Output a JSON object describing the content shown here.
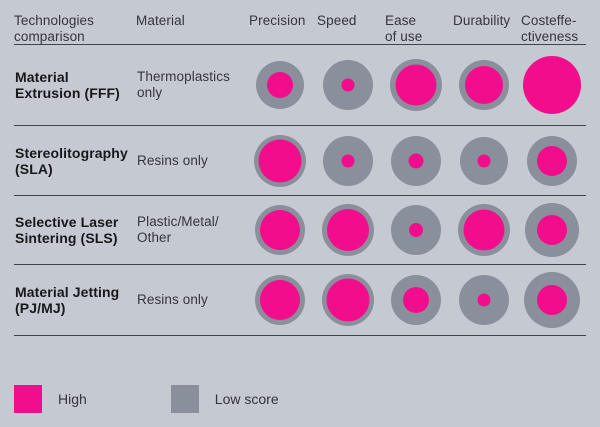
{
  "palette": {
    "bg": "#C5C9D1",
    "pink": "#F20D8C",
    "gray": "#8A909B",
    "line": "#40444D",
    "text": "#33363B",
    "text_bold": "#17181C"
  },
  "header": {
    "technologies_label": "Technologies\ncomparison",
    "material_label": "Material",
    "score_columns": [
      {
        "label": "Precision"
      },
      {
        "label": "Speed"
      },
      {
        "label": "Ease\nof use"
      },
      {
        "label": "Durability"
      },
      {
        "label": "Costeffe-\nctiveness"
      }
    ]
  },
  "rows": [
    {
      "technology": "Material\nExtrusion (FFF)",
      "material": "Thermoplastics\nonly",
      "scores": [
        {
          "criterion": "Precision",
          "gray": 48,
          "pink": 26
        },
        {
          "criterion": "Speed",
          "gray": 50,
          "pink": 13
        },
        {
          "criterion": "Ease of use",
          "gray": 52,
          "pink": 41
        },
        {
          "criterion": "Durability",
          "gray": 50,
          "pink": 38
        },
        {
          "criterion": "Costeffectiveness",
          "gray": 0,
          "pink": 58
        }
      ]
    },
    {
      "technology": "Stereolitography\n(SLA)",
      "material": "Resins only",
      "scores": [
        {
          "criterion": "Precision",
          "gray": 52,
          "pink": 43
        },
        {
          "criterion": "Speed",
          "gray": 50,
          "pink": 13
        },
        {
          "criterion": "Ease of use",
          "gray": 50,
          "pink": 15
        },
        {
          "criterion": "Durability",
          "gray": 48,
          "pink": 13
        },
        {
          "criterion": "Costeffectiveness",
          "gray": 50,
          "pink": 30
        }
      ]
    },
    {
      "technology": "Selective Laser\nSintering (SLS)",
      "material": "Plastic/Metal/\nOther",
      "scores": [
        {
          "criterion": "Precision",
          "gray": 50,
          "pink": 40
        },
        {
          "criterion": "Speed",
          "gray": 52,
          "pink": 42
        },
        {
          "criterion": "Ease of use",
          "gray": 50,
          "pink": 14
        },
        {
          "criterion": "Durability",
          "gray": 52,
          "pink": 41
        },
        {
          "criterion": "Costeffectiveness",
          "gray": 54,
          "pink": 30
        }
      ]
    },
    {
      "technology": "Material Jetting\n(PJ/MJ)",
      "material": "Resins only",
      "scores": [
        {
          "criterion": "Precision",
          "gray": 50,
          "pink": 40
        },
        {
          "criterion": "Speed",
          "gray": 52,
          "pink": 43
        },
        {
          "criterion": "Ease of use",
          "gray": 50,
          "pink": 26
        },
        {
          "criterion": "Durability",
          "gray": 50,
          "pink": 13
        },
        {
          "criterion": "Costeffectiveness",
          "gray": 56,
          "pink": 30
        }
      ]
    }
  ],
  "legend": {
    "items": [
      {
        "label": "High",
        "swatch": "pink-square"
      },
      {
        "label": "Low score",
        "swatch": "gray-square"
      }
    ]
  },
  "chart_data": {
    "type": "table",
    "title": "Technologies comparison",
    "categories": [
      "Precision",
      "Speed",
      "Ease of use",
      "Durability",
      "Costeffectiveness"
    ],
    "series": [
      {
        "name": "Material Extrusion (FFF)",
        "material": "Thermoplastics only",
        "values": [
          0.5,
          0.25,
          0.8,
          0.75,
          1.0
        ]
      },
      {
        "name": "Stereolitography (SLA)",
        "material": "Resins only",
        "values": [
          0.85,
          0.25,
          0.3,
          0.27,
          0.6
        ]
      },
      {
        "name": "Selective Laser Sintering (SLS)",
        "material": "Plastic/Metal/Other",
        "values": [
          0.8,
          0.8,
          0.28,
          0.8,
          0.55
        ]
      },
      {
        "name": "Material Jetting (PJ/MJ)",
        "material": "Resins only",
        "values": [
          0.8,
          0.83,
          0.52,
          0.25,
          0.53
        ]
      }
    ],
    "encoding": "pink inner circle diameter relative to gray outer circle = score (High = large pink, Low = large gray remainder)",
    "legend": [
      {
        "color": "#F20D8C",
        "label": "High"
      },
      {
        "color": "#8A909B",
        "label": "Low score"
      }
    ],
    "layout_hints": {
      "grid": "horizontal row separators only",
      "legend_position": "bottom-left"
    }
  }
}
